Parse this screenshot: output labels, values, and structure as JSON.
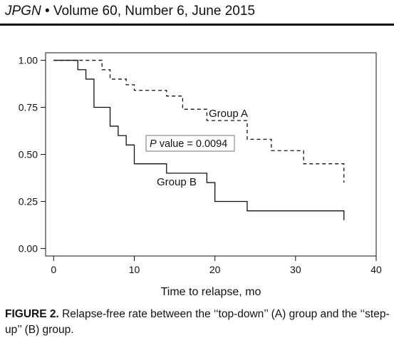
{
  "header": {
    "journal": "JPGN",
    "bullet": "•",
    "issue": "Volume 60, Number 6, June 2015"
  },
  "caption": {
    "label": "FIGURE 2.",
    "text": "Relapse-free rate between the ‘‘top-down’’ (A) group and the ‘‘step-up’’ (B) group."
  },
  "chart_data": {
    "type": "line",
    "xlabel": "Time to relapse, mo",
    "ylabel": "",
    "xlim": [
      -1,
      40
    ],
    "ylim": [
      -0.04,
      1.04
    ],
    "x_ticks": [
      0,
      10,
      20,
      30,
      40
    ],
    "y_ticks": [
      "0.00",
      "0.25",
      "0.50",
      "0.75",
      "1.00"
    ],
    "grid": false,
    "series": [
      {
        "name": "Group A",
        "style": "dashed",
        "color": "#111111",
        "x": [
          0,
          6,
          7,
          9,
          10,
          14,
          16,
          19,
          24,
          27,
          31,
          36
        ],
        "y": [
          1.0,
          0.95,
          0.9,
          0.87,
          0.84,
          0.81,
          0.74,
          0.68,
          0.58,
          0.52,
          0.45,
          0.35
        ]
      },
      {
        "name": "Group B",
        "style": "solid",
        "color": "#111111",
        "x": [
          0,
          3,
          4,
          5,
          7,
          8,
          9,
          10,
          14,
          19,
          20,
          24,
          36
        ],
        "y": [
          1.0,
          0.95,
          0.9,
          0.75,
          0.65,
          0.6,
          0.55,
          0.45,
          0.4,
          0.35,
          0.25,
          0.2,
          0.15
        ]
      }
    ],
    "annotations": {
      "group_a": "Group A",
      "group_b": "Group B",
      "pvalue_italic": "P",
      "pvalue_rest": " value = 0.0094"
    }
  }
}
